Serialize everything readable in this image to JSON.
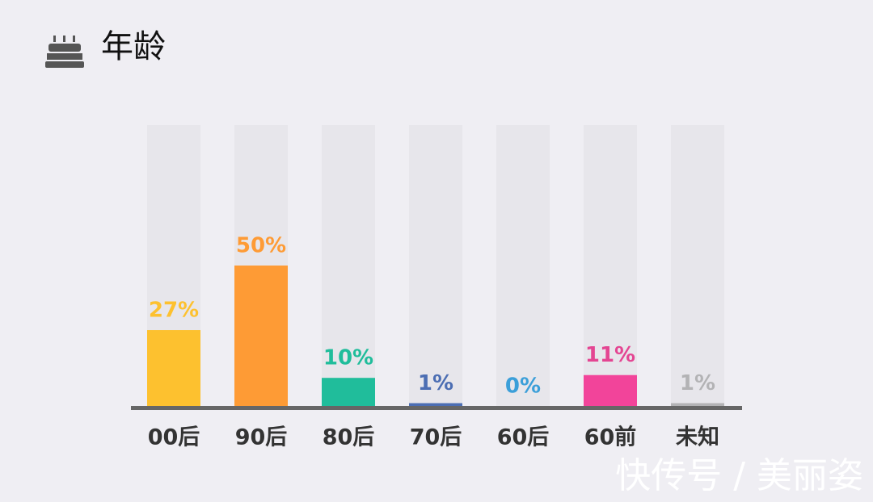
{
  "title": "年龄",
  "watermark": "快传号 / 美丽姿",
  "chart_data": {
    "type": "bar",
    "categories": [
      "00后",
      "90后",
      "80后",
      "70后",
      "60后",
      "60前",
      "未知"
    ],
    "values": [
      27,
      50,
      10,
      1,
      0,
      11,
      1
    ],
    "value_labels": [
      "27%",
      "50%",
      "10%",
      "1%",
      "0%",
      "11%",
      "1%"
    ],
    "colors": [
      "#fdc12f",
      "#fe9b35",
      "#20bd9b",
      "#4c6eb3",
      "#3b9fd9",
      "#f2449a",
      "#b3b3b5"
    ],
    "label_colors": [
      "#fdc12f",
      "#fe9b35",
      "#20bd9b",
      "#4c6eb3",
      "#3b9fd9",
      "#e44592",
      "#b3b3b5"
    ],
    "ylim": [
      0,
      100
    ]
  }
}
